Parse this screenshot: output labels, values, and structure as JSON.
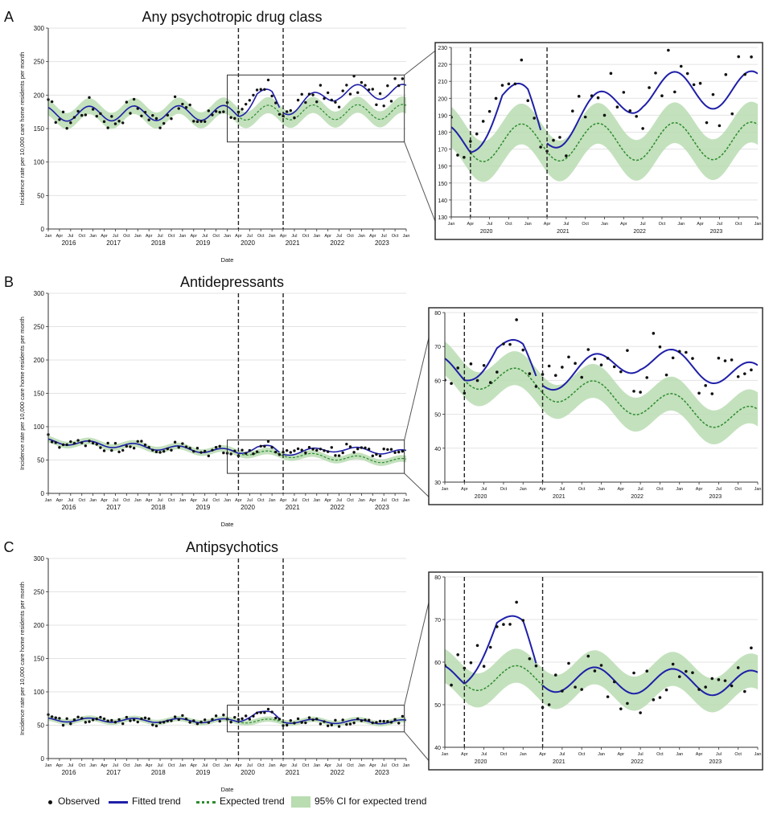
{
  "colors": {
    "observed": "#111111",
    "fitted": "#1f1fa8",
    "expected": "#2e8b2e",
    "ci": "#b9dcb1",
    "grid": "#e3e3e3"
  },
  "legend": {
    "observed": "Observed",
    "fitted": "Fitted trend",
    "expected": "Expected trend",
    "ci": "95% CI for expected trend"
  },
  "chart_data": [
    {
      "type": "line",
      "panel": "A",
      "title": "Any psychotropic drug class",
      "xlabel": "Date",
      "ylabel": "Incidence rate per 10,000 care home residents per month",
      "ylim": [
        0,
        300
      ],
      "yticks": [
        0,
        50,
        100,
        150,
        200,
        250,
        300
      ],
      "xlim": [
        "2016-01",
        "2024-01"
      ],
      "month_ticks": [
        "Jan",
        "Apr",
        "Jul",
        "Oct"
      ],
      "years": [
        "2016",
        "2017",
        "2018",
        "2019",
        "2020",
        "2021",
        "2022",
        "2023"
      ],
      "intervention_lines": [
        "2020-04",
        "2021-04"
      ],
      "inset": {
        "ylim": [
          130,
          230
        ],
        "yticks": [
          130,
          140,
          150,
          160,
          170,
          180,
          190,
          200,
          210,
          220,
          230
        ],
        "xlim": [
          "2020-01",
          "2024-01"
        ],
        "years": [
          "2020",
          "2021",
          "2022",
          "2023"
        ]
      },
      "model": {
        "base_start": 172,
        "base_end": 175,
        "amplitude": 11,
        "phase_month": 11,
        "covid_bump": [
          {
            "t": "2020-04",
            "v": 0
          },
          {
            "t": "2020-09",
            "v": 28
          },
          {
            "t": "2021-01",
            "v": 22
          }
        ],
        "ci_half_width": 12,
        "fitted_gap_end": 30,
        "observed_noise": 15
      }
    },
    {
      "type": "line",
      "panel": "B",
      "title": "Antidepressants",
      "xlabel": "Date",
      "ylabel": "Incidence rate per 10,000 care home residents per month",
      "ylim": [
        0,
        300
      ],
      "yticks": [
        0,
        50,
        100,
        150,
        200,
        250,
        300
      ],
      "xlim": [
        "2016-01",
        "2024-01"
      ],
      "month_ticks": [
        "Jan",
        "Apr",
        "Jul",
        "Oct"
      ],
      "years": [
        "2016",
        "2017",
        "2018",
        "2019",
        "2020",
        "2021",
        "2022",
        "2023"
      ],
      "intervention_lines": [
        "2020-04",
        "2021-04"
      ],
      "inset": {
        "ylim": [
          30,
          80
        ],
        "yticks": [
          30,
          40,
          50,
          60,
          70,
          80
        ],
        "xlim": [
          "2020-01",
          "2024-01"
        ],
        "years": [
          "2020",
          "2021",
          "2022",
          "2023"
        ]
      },
      "model": {
        "base_start": 78,
        "base_end": 48,
        "amplitude": 4,
        "phase_month": 11,
        "covid_bump": [
          {
            "t": "2020-04",
            "v": 0
          },
          {
            "t": "2020-09",
            "v": 9
          },
          {
            "t": "2021-01",
            "v": 8
          }
        ],
        "ci_half_width": 5,
        "fitted_gap_end": 13,
        "observed_noise": 8
      }
    },
    {
      "type": "line",
      "panel": "C",
      "title": "Antipsychotics",
      "xlabel": "Date",
      "ylabel": "Incidence rate per 10,000 care home residents per month",
      "ylim": [
        0,
        300
      ],
      "yticks": [
        0,
        50,
        100,
        150,
        200,
        250,
        300
      ],
      "xlim": [
        "2016-01",
        "2024-01"
      ],
      "month_ticks": [
        "Jan",
        "Apr",
        "Jul",
        "Oct"
      ],
      "years": [
        "2016",
        "2017",
        "2018",
        "2019",
        "2020",
        "2021",
        "2022",
        "2023"
      ],
      "intervention_lines": [
        "2020-04",
        "2021-04"
      ],
      "inset": {
        "ylim": [
          40,
          80
        ],
        "yticks": [
          40,
          50,
          60,
          70,
          80
        ],
        "xlim": [
          "2020-01",
          "2024-01"
        ],
        "years": [
          "2020",
          "2021",
          "2022",
          "2023"
        ]
      },
      "model": {
        "base_start": 58,
        "base_end": 55,
        "amplitude": 3,
        "phase_month": 11,
        "covid_bump": [
          {
            "t": "2020-04",
            "v": 0
          },
          {
            "t": "2020-09",
            "v": 13
          },
          {
            "t": "2021-01",
            "v": 11
          }
        ],
        "ci_half_width": 4,
        "fitted_gap_end": 0,
        "observed_noise": 6
      }
    }
  ]
}
